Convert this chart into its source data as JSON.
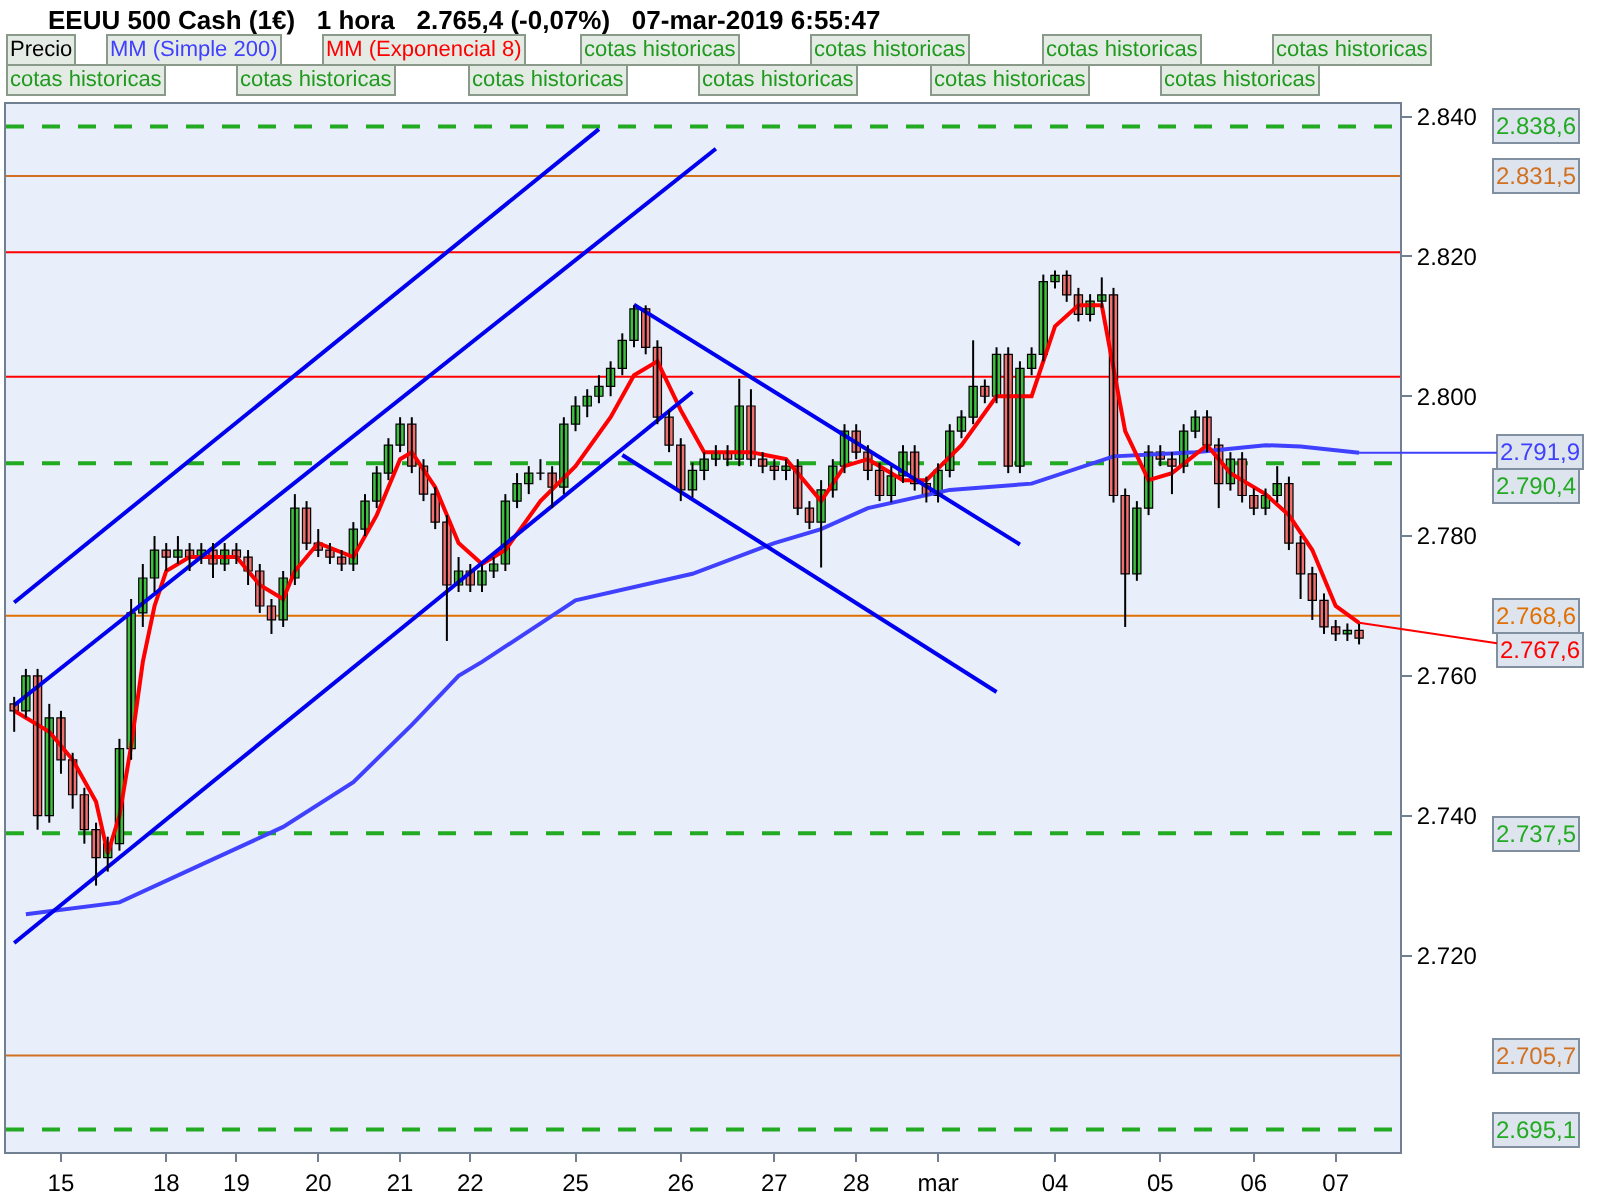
{
  "chart_data": {
    "type": "candlestick",
    "title": "EEUU 500 Cash (1€)   1 hora   2.765,4 (-0,07%)   07-mar-2019 6:55:47",
    "legend": "top",
    "grid": false,
    "categories": [
      null,
      null,
      null,
      null,
      "15",
      null,
      null,
      null,
      null,
      null,
      null,
      null,
      null,
      "18",
      null,
      null,
      null,
      null,
      null,
      "19",
      null,
      null,
      null,
      null,
      null,
      null,
      "20",
      null,
      null,
      null,
      null,
      null,
      null,
      "21",
      null,
      null,
      null,
      null,
      null,
      "22",
      null,
      null,
      null,
      null,
      null,
      null,
      null,
      null,
      "25",
      null,
      null,
      null,
      null,
      null,
      null,
      null,
      null,
      "26",
      null,
      null,
      null,
      null,
      null,
      null,
      null,
      "27",
      null,
      null,
      null,
      null,
      null,
      null,
      "28",
      null,
      null,
      null,
      null,
      null,
      null,
      "mar",
      null,
      null,
      null,
      null,
      null,
      null,
      null,
      null,
      null,
      "04",
      null,
      null,
      null,
      null,
      null,
      null,
      null,
      null,
      "05",
      null,
      null,
      null,
      null,
      null,
      null,
      null,
      "06",
      null,
      null,
      null,
      null,
      null,
      null,
      "07",
      null,
      null
    ],
    "ylim": [
      2691.9,
      2841.8
    ],
    "yticks": [
      {
        "value": 2720,
        "label": "2.720"
      },
      {
        "value": 2740,
        "label": "2.740"
      },
      {
        "value": 2760,
        "label": "2.760"
      },
      {
        "value": 2780,
        "label": "2.780"
      },
      {
        "value": 2800,
        "label": "2.800"
      },
      {
        "value": 2820,
        "label": "2.820"
      },
      {
        "value": 2840,
        "label": "2.840"
      }
    ],
    "series": [
      {
        "name": "Precio",
        "type": "candlestick",
        "color": "#000000",
        "ohlc": [
          [
            2756,
            2757,
            2752,
            2755
          ],
          [
            2755,
            2761,
            2754,
            2760
          ],
          [
            2760,
            2761,
            2738,
            2740
          ],
          [
            2740,
            2756,
            2739,
            2754
          ],
          [
            2754,
            2755,
            2746,
            2748
          ],
          [
            2748,
            2749,
            2741,
            2743
          ],
          [
            2743,
            2744,
            2736,
            2738
          ],
          [
            2738,
            2739,
            2730,
            2734
          ],
          [
            2734,
            2737,
            2732,
            2736
          ],
          [
            2736,
            2751,
            2735,
            2749.6
          ],
          [
            2749.6,
            2771,
            2748,
            2769
          ],
          [
            2769,
            2776,
            2767,
            2774
          ],
          [
            2774,
            2780,
            2772,
            2778
          ],
          [
            2778,
            2779,
            2775,
            2777
          ],
          [
            2777,
            2780,
            2776,
            2778
          ],
          [
            2778,
            2779,
            2775,
            2777
          ],
          [
            2777,
            2779,
            2776,
            2778
          ],
          [
            2778,
            2779,
            2774,
            2776
          ],
          [
            2776,
            2779,
            2775,
            2778
          ],
          [
            2778,
            2779,
            2776,
            2777
          ],
          [
            2777,
            2778,
            2773,
            2775
          ],
          [
            2775,
            2776,
            2769,
            2770
          ],
          [
            2770,
            2771,
            2766,
            2768
          ],
          [
            2768,
            2775,
            2767,
            2774
          ],
          [
            2774,
            2786,
            2773,
            2784
          ],
          [
            2784,
            2785,
            2778,
            2779
          ],
          [
            2779,
            2781,
            2777,
            2778
          ],
          [
            2778,
            2779,
            2776,
            2777
          ],
          [
            2777,
            2778,
            2775,
            2776
          ],
          [
            2776,
            2782,
            2775,
            2781
          ],
          [
            2781,
            2786,
            2780,
            2785
          ],
          [
            2785,
            2790,
            2784,
            2789
          ],
          [
            2789,
            2794,
            2788,
            2793
          ],
          [
            2793,
            2797,
            2792,
            2796
          ],
          [
            2796,
            2797,
            2789,
            2790
          ],
          [
            2790,
            2791,
            2785,
            2786
          ],
          [
            2786,
            2787,
            2781,
            2782
          ],
          [
            2782,
            2783,
            2765,
            2773
          ],
          [
            2773,
            2777,
            2772,
            2775
          ],
          [
            2775,
            2776,
            2772,
            2773
          ],
          [
            2773,
            2776,
            2772,
            2775
          ],
          [
            2775,
            2777,
            2774,
            2776
          ],
          [
            2776,
            2786,
            2775,
            2785
          ],
          [
            2785,
            2789,
            2784,
            2787.5
          ],
          [
            2787.5,
            2790,
            2786,
            2789
          ],
          [
            2789,
            2791,
            2788,
            2789
          ],
          [
            2789,
            2790,
            2784,
            2787
          ],
          [
            2787,
            2797,
            2786,
            2796
          ],
          [
            2796,
            2800,
            2795,
            2798.6
          ],
          [
            2798.6,
            2801,
            2797,
            2800
          ],
          [
            2800,
            2803,
            2799,
            2801.4
          ],
          [
            2801.4,
            2805,
            2800,
            2804
          ],
          [
            2804,
            2809,
            2803,
            2808
          ],
          [
            2808,
            2813,
            2807,
            2812.5
          ],
          [
            2812.5,
            2813,
            2806,
            2807
          ],
          [
            2807,
            2808,
            2796,
            2797
          ],
          [
            2797,
            2798,
            2792,
            2793
          ],
          [
            2793,
            2794,
            2785,
            2786.6
          ],
          [
            2786.6,
            2790.5,
            2785.5,
            2789.4
          ],
          [
            2789.4,
            2792,
            2788,
            2791
          ],
          [
            2791,
            2793,
            2790,
            2792
          ],
          [
            2792,
            2793,
            2790,
            2791
          ],
          [
            2791,
            2802.5,
            2790,
            2798.6
          ],
          [
            2798.6,
            2801,
            2790,
            2791
          ],
          [
            2791,
            2792,
            2789,
            2790
          ],
          [
            2790,
            2791,
            2788,
            2789.4
          ],
          [
            2789.4,
            2791,
            2788,
            2790
          ],
          [
            2790,
            2791,
            2783,
            2784
          ],
          [
            2784,
            2785,
            2781,
            2782
          ],
          [
            2782,
            2788,
            2775.5,
            2786.6
          ],
          [
            2786.6,
            2791,
            2785.5,
            2790
          ],
          [
            2790,
            2796,
            2789,
            2795
          ],
          [
            2795,
            2796,
            2791,
            2792
          ],
          [
            2792,
            2793,
            2788,
            2789.4
          ],
          [
            2789.4,
            2790.5,
            2785,
            2785.8
          ],
          [
            2785.8,
            2790,
            2784.8,
            2788.6
          ],
          [
            2788.6,
            2793,
            2787.6,
            2792
          ],
          [
            2792,
            2793,
            2786.5,
            2787.5
          ],
          [
            2787.5,
            2788.5,
            2784.8,
            2785.8
          ],
          [
            2785.8,
            2790.4,
            2784.8,
            2789.4
          ],
          [
            2789.4,
            2796,
            2788.4,
            2795
          ],
          [
            2795,
            2798,
            2794,
            2797
          ],
          [
            2797,
            2808,
            2796,
            2801.4
          ],
          [
            2801.4,
            2802.4,
            2799,
            2800
          ],
          [
            2800,
            2807,
            2799,
            2806
          ],
          [
            2806,
            2807,
            2789,
            2790
          ],
          [
            2790,
            2805,
            2789,
            2804
          ],
          [
            2804,
            2807,
            2803,
            2806
          ],
          [
            2806,
            2817.4,
            2805,
            2816.4
          ],
          [
            2816.4,
            2818,
            2815.4,
            2817.3
          ],
          [
            2817.3,
            2818,
            2813.5,
            2814.5
          ],
          [
            2814.5,
            2815.5,
            2810.7,
            2811.7
          ],
          [
            2811.7,
            2814.6,
            2810.7,
            2813.6
          ],
          [
            2813.6,
            2817,
            2812.6,
            2814.5
          ],
          [
            2814.5,
            2815.5,
            2784.8,
            2785.8
          ],
          [
            2785.8,
            2786.8,
            2767,
            2774.6
          ],
          [
            2774.6,
            2785,
            2773.6,
            2784
          ],
          [
            2784,
            2793,
            2783,
            2792
          ],
          [
            2792,
            2793,
            2790,
            2791
          ],
          [
            2791,
            2792,
            2786,
            2790
          ],
          [
            2790,
            2796,
            2789,
            2795
          ],
          [
            2795,
            2798,
            2794,
            2797
          ],
          [
            2797,
            2798,
            2792,
            2793
          ],
          [
            2793,
            2794,
            2784,
            2787.5
          ],
          [
            2787.5,
            2792,
            2786.5,
            2791
          ],
          [
            2791,
            2792,
            2784.8,
            2785.8
          ],
          [
            2785.8,
            2786.8,
            2783,
            2784
          ],
          [
            2784,
            2786.8,
            2783,
            2785.8
          ],
          [
            2785.8,
            2790,
            2784.8,
            2787.5
          ],
          [
            2787.5,
            2788.5,
            2778,
            2779
          ],
          [
            2779,
            2780,
            2771,
            2774.6
          ],
          [
            2774.6,
            2775.6,
            2768,
            2770.8
          ],
          [
            2770.8,
            2771.8,
            2766,
            2767
          ],
          [
            2767,
            2768,
            2765,
            2766
          ],
          [
            2766,
            2767.5,
            2765,
            2766.5
          ],
          [
            2766.5,
            2767.5,
            2764.5,
            2765.4
          ]
        ]
      },
      {
        "name": "MM (Simple 200)",
        "type": "line",
        "color": "#4040ff",
        "values": [
          null,
          2725.9,
          null,
          null,
          null,
          null,
          null,
          null,
          null,
          2727.6,
          null,
          null,
          null,
          null,
          null,
          null,
          2733,
          null,
          null,
          null,
          null,
          null,
          null,
          2738.4,
          null,
          null,
          null,
          null,
          null,
          2744.8,
          null,
          null,
          null,
          null,
          2753,
          null,
          null,
          null,
          2760,
          null,
          2762,
          null,
          null,
          null,
          null,
          null,
          null,
          null,
          2770.8,
          null,
          null,
          null,
          null,
          null,
          null,
          null,
          null,
          null,
          2774.6,
          null,
          null,
          null,
          null,
          null,
          null,
          2779,
          null,
          null,
          null,
          2781,
          null,
          null,
          null,
          2784,
          null,
          null,
          null,
          null,
          null,
          null,
          2786.6,
          null,
          null,
          null,
          null,
          null,
          null,
          2787.5,
          null,
          null,
          null,
          null,
          null,
          null,
          2791.4,
          null,
          null,
          null,
          null,
          null,
          null,
          2792,
          null,
          null,
          null,
          null,
          null,
          2793,
          null,
          null,
          2792.8,
          null,
          null,
          null,
          null,
          2791.9
        ],
        "value_labels": [
          null,
          null,
          null,
          null,
          null,
          null,
          null,
          null,
          null,
          null,
          null,
          null,
          null,
          null,
          null,
          null,
          null,
          null,
          null,
          null,
          null,
          null,
          null,
          null,
          null,
          null,
          null,
          null,
          null,
          null,
          null,
          null,
          null,
          null,
          null,
          null,
          null,
          null,
          null,
          null,
          null,
          null,
          null,
          null,
          null,
          null,
          null,
          null,
          null,
          null,
          null,
          null,
          null,
          null,
          null,
          null,
          null,
          null,
          null,
          null,
          null,
          null,
          null,
          null,
          null,
          null,
          null,
          null,
          null,
          null,
          null,
          null,
          null,
          null,
          null,
          null,
          null,
          null,
          null,
          null,
          null,
          null,
          null,
          null,
          null,
          null,
          null,
          null,
          null,
          null,
          null,
          null,
          null,
          null,
          null,
          null,
          null,
          null,
          null,
          null,
          null,
          null,
          null,
          null,
          null,
          null,
          null,
          null,
          null,
          null,
          null,
          null,
          null,
          null,
          null,
          "2.791,9"
        ]
      },
      {
        "name": "MM (Exponencial 8)",
        "type": "line",
        "color": "#ff0000",
        "values": [
          2755,
          null,
          null,
          2752,
          null,
          2748,
          null,
          2742,
          2734.6,
          2740,
          2750,
          2762,
          2770,
          2775,
          null,
          2777,
          null,
          null,
          null,
          2777,
          null,
          2773,
          null,
          2771,
          2775,
          null,
          2779,
          null,
          null,
          2777,
          null,
          2783,
          null,
          2791,
          2792,
          null,
          2787,
          null,
          2779,
          null,
          2776,
          null,
          2778,
          null,
          null,
          2785,
          null,
          null,
          2790,
          null,
          null,
          2797,
          null,
          2803,
          null,
          2805,
          null,
          2798,
          null,
          2792,
          null,
          null,
          null,
          2792,
          null,
          null,
          2791,
          null,
          null,
          2785,
          null,
          2790,
          null,
          2791,
          null,
          null,
          2788,
          null,
          2788,
          null,
          null,
          2793,
          null,
          null,
          2800,
          null,
          null,
          2800,
          null,
          2810,
          null,
          2813,
          null,
          2813,
          null,
          2795,
          null,
          2788,
          null,
          2789,
          null,
          null,
          2793,
          null,
          2789,
          null,
          null,
          2786,
          null,
          2783,
          null,
          2778,
          null,
          2770,
          null,
          2767.6
        ],
        "value_labels": [
          null,
          null,
          null,
          null,
          null,
          null,
          null,
          null,
          null,
          null,
          null,
          null,
          null,
          null,
          null,
          null,
          null,
          null,
          null,
          null,
          null,
          null,
          null,
          null,
          null,
          null,
          null,
          null,
          null,
          null,
          null,
          null,
          null,
          null,
          null,
          null,
          null,
          null,
          null,
          null,
          null,
          null,
          null,
          null,
          null,
          null,
          null,
          null,
          null,
          null,
          null,
          null,
          null,
          null,
          null,
          null,
          null,
          null,
          null,
          null,
          null,
          null,
          null,
          null,
          null,
          null,
          null,
          null,
          null,
          null,
          null,
          null,
          null,
          null,
          null,
          null,
          null,
          null,
          null,
          null,
          null,
          null,
          null,
          null,
          null,
          null,
          null,
          null,
          null,
          null,
          null,
          null,
          null,
          null,
          null,
          null,
          null,
          null,
          null,
          null,
          null,
          null,
          null,
          null,
          null,
          null,
          null,
          null,
          null,
          null,
          null,
          null,
          null,
          null,
          null,
          "2.767,6"
        ]
      },
      {
        "type": "line",
        "color": "#0000ee",
        "values": [
          2770.5,
          null,
          null,
          null,
          null,
          null,
          null,
          null,
          null,
          null,
          null,
          null,
          null,
          null,
          null,
          null,
          null,
          null,
          null,
          null,
          null,
          null,
          null,
          null,
          null,
          null,
          null,
          null,
          null,
          null,
          null,
          null,
          null,
          null,
          null,
          null,
          null,
          null,
          null,
          null,
          null,
          null,
          null,
          null,
          null,
          null,
          null,
          null,
          null,
          null,
          2838.2,
          null,
          null,
          null,
          null,
          null,
          null,
          null,
          null,
          null,
          null,
          null,
          null,
          null,
          null,
          null,
          null,
          null,
          null,
          null,
          null,
          null,
          null,
          null,
          null,
          null,
          null,
          null,
          null,
          null,
          null,
          null,
          null,
          null,
          null,
          null,
          null,
          null,
          null,
          null,
          null,
          null,
          null,
          null,
          null,
          null,
          null,
          null,
          null,
          null,
          null,
          null,
          null,
          null,
          null,
          null,
          null,
          null,
          null,
          null,
          null,
          null,
          null,
          null,
          null,
          null
        ]
      },
      {
        "type": "line",
        "color": "#0000ee",
        "values": [
          2755.8,
          null,
          null,
          null,
          null,
          null,
          null,
          null,
          null,
          null,
          null,
          null,
          null,
          null,
          null,
          null,
          null,
          null,
          null,
          null,
          null,
          null,
          null,
          null,
          null,
          null,
          null,
          null,
          null,
          null,
          null,
          null,
          null,
          null,
          null,
          null,
          null,
          null,
          null,
          null,
          null,
          null,
          null,
          null,
          null,
          null,
          null,
          null,
          null,
          null,
          null,
          null,
          null,
          null,
          null,
          null,
          null,
          null,
          null,
          null,
          2835.4,
          null,
          null,
          null,
          null,
          null,
          null,
          null,
          null,
          null,
          null,
          null,
          null,
          null,
          null,
          null,
          null,
          null,
          null,
          null,
          null,
          null,
          null,
          null,
          null,
          null,
          null,
          null,
          null,
          null,
          null,
          null,
          null,
          null,
          null,
          null,
          null,
          null,
          null,
          null,
          null,
          null,
          null,
          null,
          null,
          null,
          null,
          null,
          null,
          null,
          null,
          null,
          null,
          null,
          null,
          null
        ]
      },
      {
        "type": "line",
        "color": "#0000ee",
        "values": [
          2721.8,
          null,
          null,
          null,
          null,
          null,
          null,
          null,
          null,
          null,
          null,
          null,
          null,
          null,
          null,
          null,
          null,
          null,
          null,
          null,
          null,
          null,
          null,
          null,
          null,
          null,
          null,
          null,
          null,
          null,
          null,
          null,
          null,
          null,
          null,
          null,
          null,
          null,
          null,
          null,
          null,
          null,
          null,
          null,
          null,
          null,
          null,
          null,
          null,
          null,
          null,
          null,
          null,
          null,
          null,
          null,
          null,
          null,
          2800.6,
          null,
          null,
          null,
          null,
          null,
          null,
          null,
          null,
          null,
          null,
          null,
          null,
          null,
          null,
          null,
          null,
          null,
          null,
          null,
          null,
          null,
          null,
          null,
          null,
          null,
          null,
          null,
          null,
          null,
          null,
          null,
          null,
          null,
          null,
          null,
          null,
          null,
          null,
          null,
          null,
          null,
          null,
          null,
          null,
          null,
          null,
          null,
          null,
          null,
          null,
          null,
          null,
          null,
          null,
          null,
          null,
          null
        ]
      },
      {
        "type": "line",
        "color": "#0000ee",
        "values": [
          null,
          null,
          null,
          null,
          null,
          null,
          null,
          null,
          null,
          null,
          null,
          null,
          null,
          null,
          null,
          null,
          null,
          null,
          null,
          null,
          null,
          null,
          null,
          null,
          null,
          null,
          null,
          null,
          null,
          null,
          null,
          null,
          null,
          null,
          null,
          null,
          null,
          null,
          null,
          null,
          null,
          null,
          null,
          null,
          null,
          null,
          null,
          null,
          null,
          null,
          null,
          null,
          null,
          2813.1,
          null,
          null,
          null,
          null,
          null,
          null,
          null,
          null,
          null,
          null,
          null,
          null,
          null,
          null,
          null,
          null,
          null,
          null,
          null,
          null,
          null,
          null,
          null,
          null,
          null,
          null,
          null,
          null,
          null,
          null,
          null,
          null,
          2778.8,
          null,
          null,
          null,
          null,
          null,
          null,
          null,
          null,
          null,
          null,
          null,
          null,
          null,
          null,
          null,
          null,
          null,
          null,
          null,
          null,
          null,
          null,
          null,
          null,
          null,
          null,
          null,
          null,
          null
        ]
      },
      {
        "type": "line",
        "color": "#0000ee",
        "values": [
          null,
          null,
          null,
          null,
          null,
          null,
          null,
          null,
          null,
          null,
          null,
          null,
          null,
          null,
          null,
          null,
          null,
          null,
          null,
          null,
          null,
          null,
          null,
          null,
          null,
          null,
          null,
          null,
          null,
          null,
          null,
          null,
          null,
          null,
          null,
          null,
          null,
          null,
          null,
          null,
          null,
          null,
          null,
          null,
          null,
          null,
          null,
          null,
          null,
          null,
          null,
          null,
          2791.6,
          null,
          null,
          null,
          null,
          null,
          null,
          null,
          null,
          null,
          null,
          null,
          null,
          null,
          null,
          null,
          null,
          null,
          null,
          null,
          null,
          null,
          null,
          null,
          null,
          null,
          null,
          null,
          null,
          null,
          null,
          null,
          2757.7,
          null,
          null,
          null,
          null,
          null,
          null,
          null,
          null,
          null,
          null,
          null,
          null,
          null,
          null,
          null,
          null,
          null,
          null,
          null,
          null,
          null,
          null,
          null,
          null,
          null,
          null,
          null,
          null,
          null,
          null,
          null
        ]
      }
    ],
    "ref_lines": [
      {
        "axis": "y",
        "value": 2838.6,
        "label": "2.838,6",
        "color": "#22aa22",
        "line_style": "dashed"
      },
      {
        "axis": "y",
        "value": 2831.5,
        "label": "2.831,5",
        "color": "#d07020",
        "line_style": "solid"
      },
      {
        "axis": "y",
        "value": 2820.6,
        "label": null,
        "color": "#ff0000",
        "line_style": "solid"
      },
      {
        "axis": "y",
        "value": 2802.8,
        "label": null,
        "color": "#ff0000",
        "line_style": "solid"
      },
      {
        "axis": "y",
        "value": 2790.4,
        "label": "2.790,4",
        "color": "#22aa22",
        "line_style": "dashed"
      },
      {
        "axis": "y",
        "value": 2768.6,
        "label": "2.768,6",
        "color": "#e07000",
        "line_style": "solid"
      },
      {
        "axis": "y",
        "value": 2737.5,
        "label": "2.737,5",
        "color": "#22aa22",
        "line_style": "dashed"
      },
      {
        "axis": "y",
        "value": 2705.7,
        "label": "2.705,7",
        "color": "#d07020",
        "line_style": "solid"
      },
      {
        "axis": "y",
        "value": 2695.1,
        "label": "2.695,1",
        "color": "#22aa22",
        "line_style": "dashed"
      }
    ],
    "annotations": [
      "cotas historicas",
      "cotas historicas",
      "cotas historicas",
      "cotas historicas",
      "cotas historicas",
      "cotas historicas",
      "cotas historicas",
      "cotas historicas",
      "cotas historicas",
      "cotas historicas"
    ]
  }
}
